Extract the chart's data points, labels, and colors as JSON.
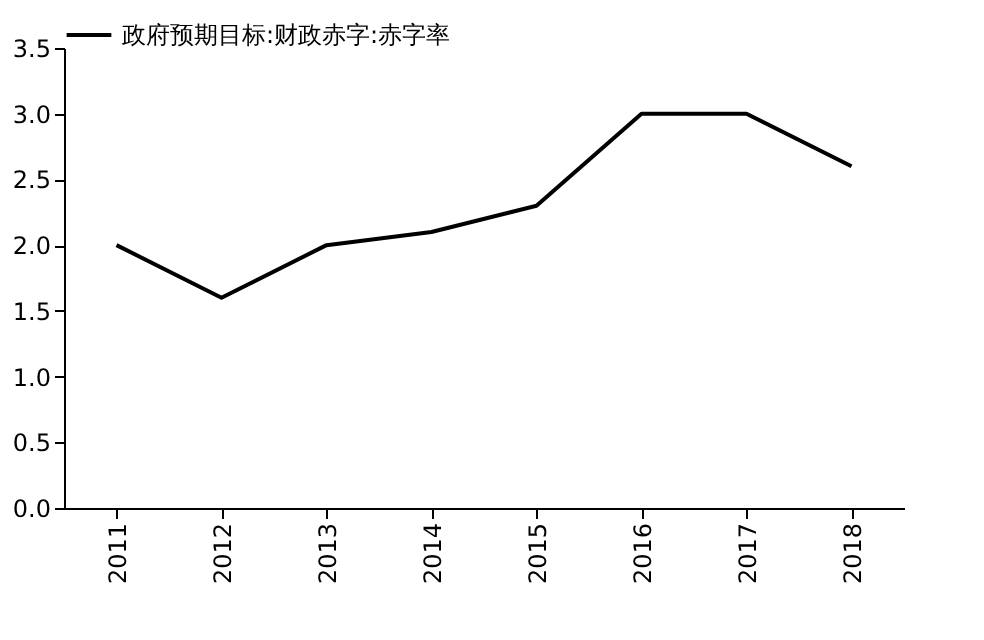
{
  "chart_data": {
    "type": "line",
    "categories": [
      "2011",
      "2012",
      "2013",
      "2014",
      "2015",
      "2016",
      "2017",
      "2018"
    ],
    "series": [
      {
        "name": "政府预期目标:财政赤字:赤字率",
        "color": "#000000",
        "values": [
          2.0,
          1.6,
          2.0,
          2.1,
          2.3,
          3.0,
          3.0,
          2.6
        ]
      }
    ],
    "ylim": [
      0,
      3.5
    ],
    "yticks": [
      {
        "value": 0,
        "label": "0.0"
      },
      0.5,
      {
        "value": 1,
        "label": "1.0"
      },
      1.5,
      {
        "value": 2,
        "label": "2.0"
      },
      2.5,
      {
        "value": 3,
        "label": "3.0"
      },
      3.5
    ],
    "grid": false,
    "legend": "top",
    "marker": "none",
    "line_style": "solid"
  }
}
